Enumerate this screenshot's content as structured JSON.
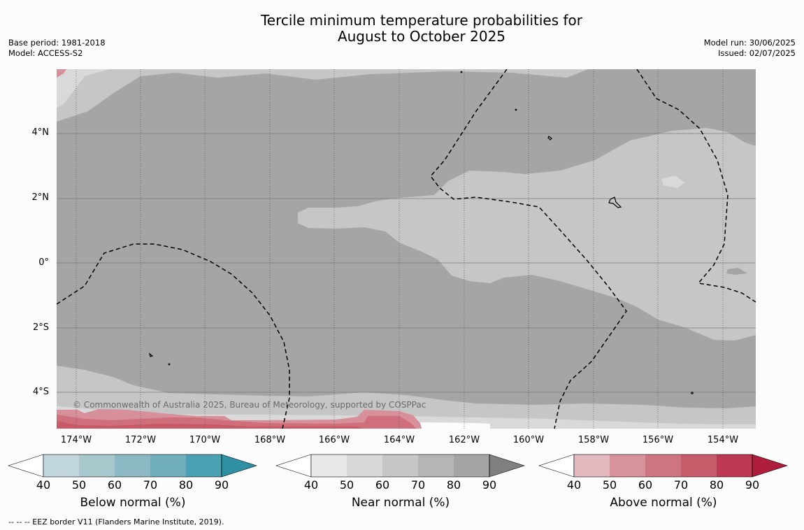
{
  "title": {
    "line1": "Tercile minimum temperature probabilities for",
    "line2": "August to October 2025"
  },
  "meta_left": {
    "base_period": "Base period: 1981-2018",
    "model": "Model: ACCESS-S2"
  },
  "meta_right": {
    "model_run": "Model run: 30/06/2025",
    "issued": "Issued: 02/07/2025"
  },
  "map": {
    "lat_labels": [
      "4°N",
      "2°N",
      "0°",
      "2°S",
      "4°S"
    ],
    "lon_labels": [
      "174°W",
      "172°W",
      "170°W",
      "168°W",
      "166°W",
      "164°W",
      "162°W",
      "160°W",
      "158°W",
      "156°W",
      "154°W"
    ],
    "credit": "© Commonwealth of Australia 2025, Bureau of Meteorology, supported by COSPPac",
    "colors": {
      "near_normal_80": "#a5a5a5",
      "near_normal_70": "#c6c6c6",
      "near_normal_60": "#d9d9d9",
      "above_normal_50": "#d78f99",
      "above_normal_60": "#cf6f7c",
      "above_normal_70": "#c85a67",
      "eez_line": "#000000"
    }
  },
  "colorbars": [
    {
      "title": "Below normal (%)",
      "ticks": [
        "40",
        "50",
        "60",
        "70",
        "80",
        "90"
      ],
      "colors": [
        "#c0d6dc",
        "#a7c7cc",
        "#8cb8c3",
        "#71aebc",
        "#4aa1b1",
        "#2f8fa3"
      ]
    },
    {
      "title": "Near normal (%)",
      "ticks": [
        "40",
        "50",
        "60",
        "70",
        "80",
        "90"
      ],
      "colors": [
        "#e8e8e8",
        "#d8d8d8",
        "#c6c6c6",
        "#b5b5b5",
        "#a5a5a5",
        "#808080"
      ]
    },
    {
      "title": "Above normal (%)",
      "ticks": [
        "40",
        "50",
        "60",
        "70",
        "80",
        "90"
      ],
      "colors": [
        "#e3b9bf",
        "#d8929c",
        "#cd7581",
        "#c55c6a",
        "#bb3a51",
        "#ae1e3c"
      ]
    }
  ],
  "footnote": "-- -- -- EEZ border V11 (Flanders Marine Institute, 2019)."
}
